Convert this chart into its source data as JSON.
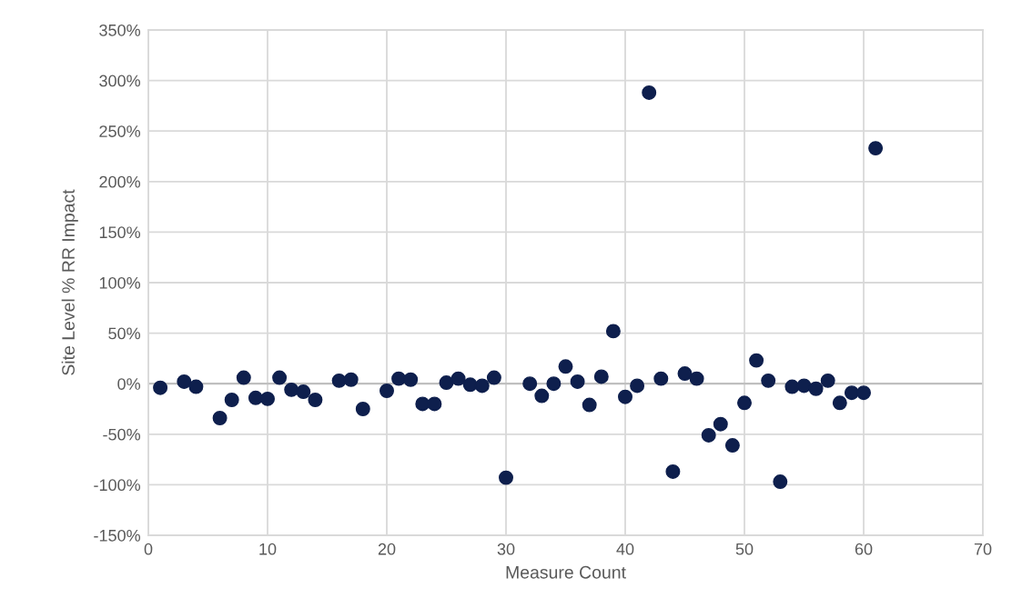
{
  "chart_data": {
    "type": "scatter",
    "xlabel": "Measure Count",
    "ylabel": "Site Level % RR Impact",
    "xlim": [
      0,
      70
    ],
    "xticks": [
      0,
      10,
      20,
      30,
      40,
      50,
      60,
      70
    ],
    "ylim": [
      -150,
      350
    ],
    "yticks": [
      {
        "value": -150,
        "label": "-150%"
      },
      {
        "value": -100,
        "label": "-100%"
      },
      {
        "value": -50,
        "label": "-50%"
      },
      {
        "value": 0,
        "label": "0%"
      },
      {
        "value": 50,
        "label": "50%"
      },
      {
        "value": 100,
        "label": "100%"
      },
      {
        "value": 150,
        "label": "150%"
      },
      {
        "value": 200,
        "label": "200%"
      },
      {
        "value": 250,
        "label": "250%"
      },
      {
        "value": 300,
        "label": "300%"
      },
      {
        "value": 350,
        "label": "350%"
      }
    ],
    "grid": true,
    "marker": "circle",
    "ref_lines": [
      {
        "axis": "y",
        "value": 0,
        "color": "#bfbfbf"
      }
    ],
    "series": [
      {
        "color": "#0e1f4d",
        "x": [
          1,
          3,
          4,
          6,
          7,
          8,
          9,
          10,
          11,
          12,
          13,
          14,
          16,
          17,
          18,
          20,
          21,
          22,
          23,
          24,
          25,
          26,
          27,
          28,
          29,
          30,
          32,
          33,
          34,
          35,
          36,
          37,
          38,
          39,
          40,
          41,
          42,
          43,
          44,
          45,
          46,
          47,
          48,
          49,
          50,
          51,
          52,
          53,
          54,
          55,
          56,
          57,
          58,
          59,
          60,
          61
        ],
        "values": [
          -4,
          2,
          -3,
          -34,
          -16,
          6,
          -14,
          -15,
          6,
          -6,
          -8,
          -16,
          3,
          4,
          -25,
          -7,
          5,
          4,
          -20,
          -20,
          1,
          5,
          -1,
          -2,
          6,
          -93,
          0,
          -12,
          0,
          17,
          2,
          -21,
          7,
          52,
          -13,
          -2,
          288,
          5,
          -87,
          10,
          5,
          -51,
          -40,
          -61,
          -19,
          23,
          3,
          -97,
          -3,
          -2,
          -5,
          3,
          -19,
          -9,
          -9,
          233
        ]
      }
    ]
  }
}
